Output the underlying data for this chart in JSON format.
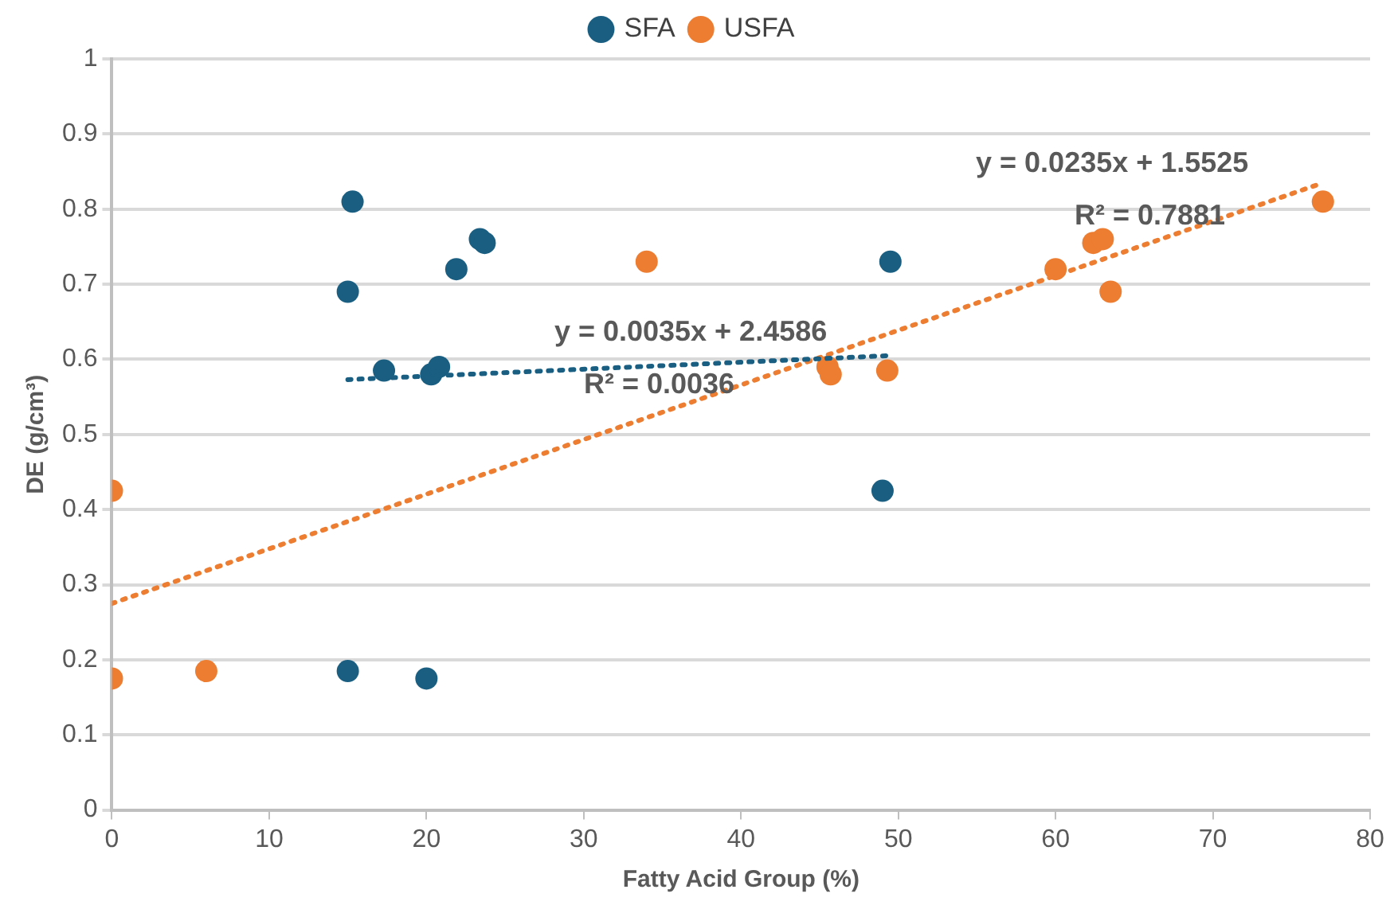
{
  "chart_data": {
    "type": "scatter",
    "xlabel": "Fatty Acid Group (%)",
    "ylabel": "DE (g/cm³)",
    "xlim": [
      0,
      80
    ],
    "xticks": [
      0,
      10,
      20,
      30,
      40,
      50,
      60,
      70,
      80
    ],
    "ylim": [
      0,
      1
    ],
    "yticks": [
      0,
      0.1,
      0.2,
      0.3,
      0.4,
      0.5,
      0.6,
      0.7,
      0.8,
      0.9,
      1
    ],
    "grid": "y",
    "legend": "top",
    "marker": "circle",
    "series": [
      {
        "name": "SFA",
        "color": "#1a5f82",
        "x": [
          15.3,
          15,
          17.3,
          20.3,
          20.8,
          21.9,
          23.4,
          23.7,
          49.5,
          49,
          15,
          20
        ],
        "values": [
          0.81,
          0.69,
          0.585,
          0.58,
          0.59,
          0.72,
          0.76,
          0.755,
          0.73,
          0.425,
          0.185,
          0.175
        ]
      },
      {
        "name": "USFA",
        "color": "#ed7d31",
        "x": [
          0,
          0,
          6,
          34,
          45.5,
          45.7,
          49.3,
          60,
          62.4,
          63,
          63.5,
          77
        ],
        "values": [
          0.425,
          0.175,
          0.185,
          0.73,
          0.59,
          0.58,
          0.585,
          0.72,
          0.755,
          0.76,
          0.69,
          0.81
        ]
      },
      {
        "type": "line",
        "color": "#1a5f82",
        "line_style": "dotted",
        "marker": "none",
        "x": [
          15,
          49.5
        ],
        "values": [
          0.573,
          0.605
        ]
      },
      {
        "type": "line",
        "color": "#ed7d31",
        "line_style": "dotted",
        "marker": "none",
        "x": [
          0,
          77
        ],
        "values": [
          0.275,
          0.835
        ]
      }
    ],
    "annotations": [
      "y = 0.0035x + 2.4586",
      "R² = 0.0036",
      "y = 0.0235x + 1.5525",
      "R² = 0.7881"
    ]
  }
}
